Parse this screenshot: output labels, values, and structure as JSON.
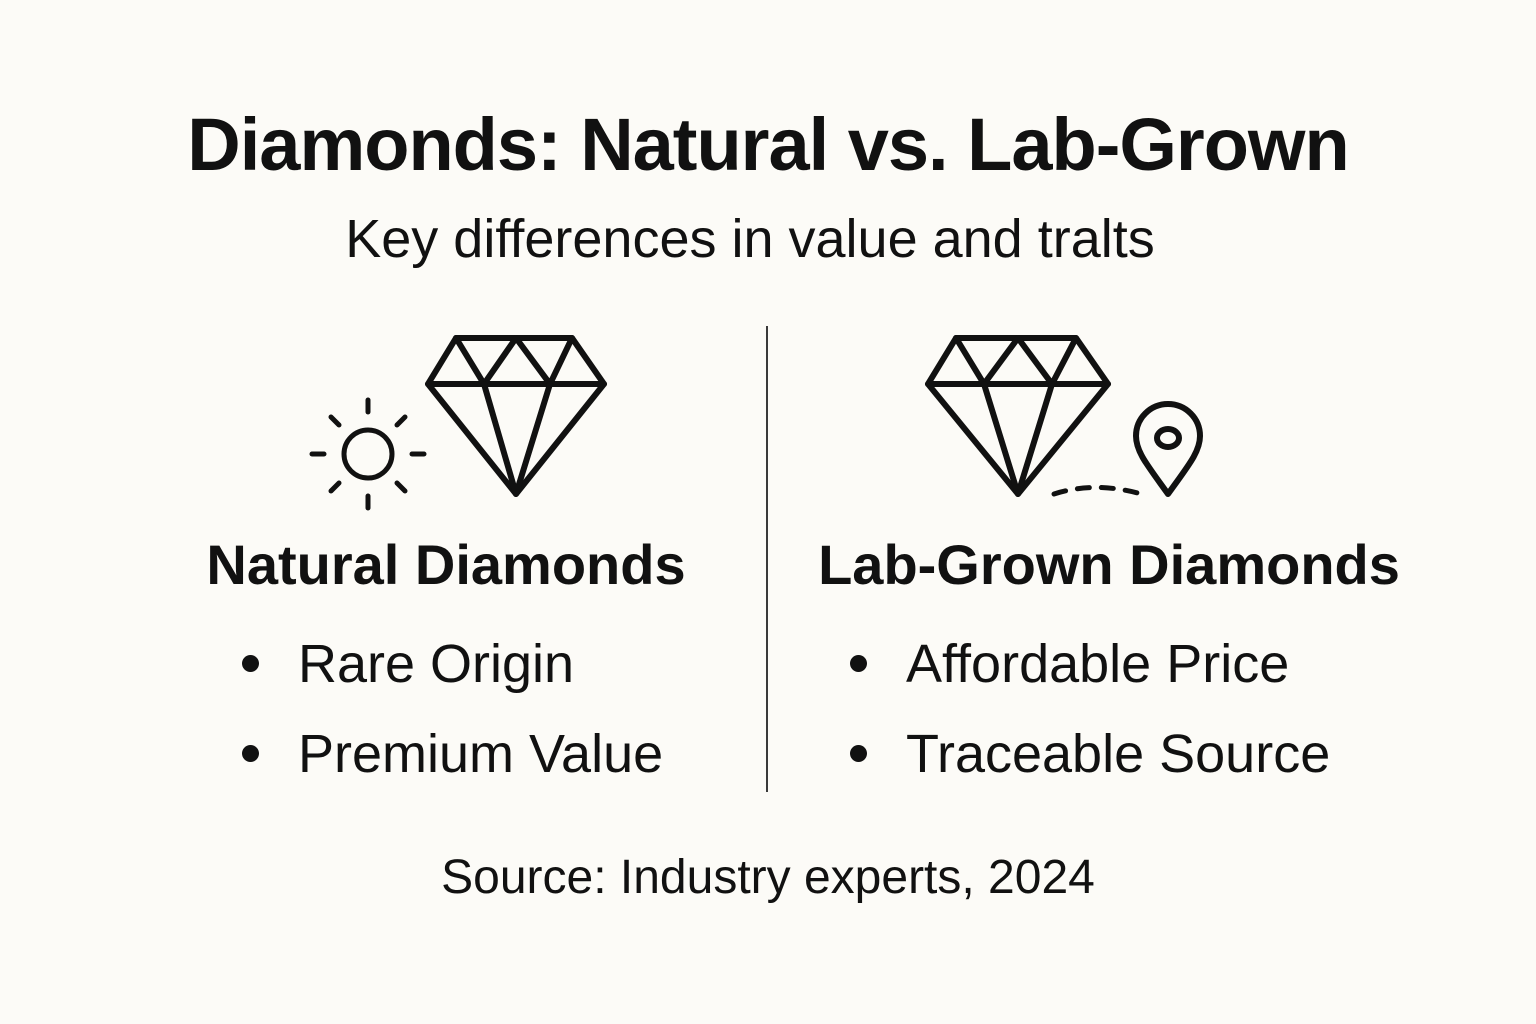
{
  "title": "Diamonds: Natural vs. Lab-Grown",
  "subtitle": "Key differences in value and tralts",
  "natural": {
    "heading": "Natural Diamonds",
    "icons": [
      "sun-icon",
      "diamond-icon"
    ],
    "items": [
      "Rare Origin",
      "Premium Value"
    ]
  },
  "lab_grown": {
    "heading": "Lab-Grown Diamonds",
    "icons": [
      "diamond-icon",
      "location-pin-icon"
    ],
    "items": [
      "Affordable Price",
      "Traceable Source"
    ]
  },
  "source": "Source: Industry experts, 2024"
}
